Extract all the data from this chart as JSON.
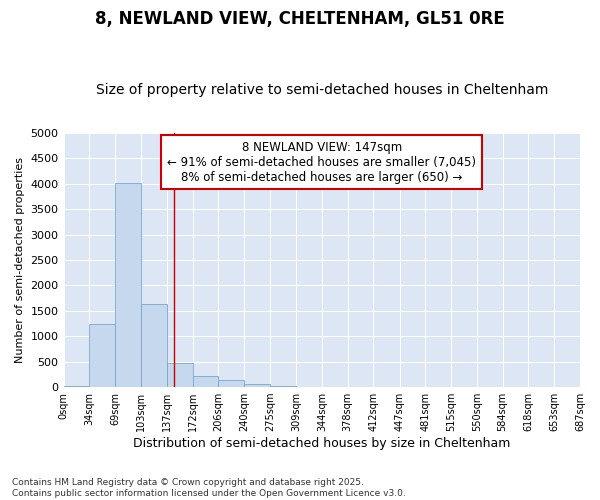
{
  "title1": "8, NEWLAND VIEW, CHELTENHAM, GL51 0RE",
  "title2": "Size of property relative to semi-detached houses in Cheltenham",
  "xlabel": "Distribution of semi-detached houses by size in Cheltenham",
  "ylabel": "Number of semi-detached properties",
  "bar_color": "#c5d8ee",
  "bar_edge_color": "#7ba7cc",
  "bg_color": "#dce6f4",
  "grid_color": "#ffffff",
  "property_line_x": 147,
  "annotation_text": "8 NEWLAND VIEW: 147sqm\n← 91% of semi-detached houses are smaller (7,045)\n8% of semi-detached houses are larger (650) →",
  "annotation_box_color": "#ffffff",
  "annotation_edge_color": "#cc0000",
  "bin_edges": [
    0,
    34,
    69,
    103,
    137,
    172,
    206,
    240,
    275,
    309,
    344,
    378,
    412,
    447,
    481,
    515,
    550,
    584,
    618,
    653,
    687
  ],
  "bin_counts": [
    30,
    1250,
    4020,
    1625,
    480,
    220,
    140,
    60,
    30,
    0,
    0,
    0,
    0,
    0,
    0,
    0,
    0,
    0,
    0,
    0
  ],
  "ylim": [
    0,
    5000
  ],
  "yticks": [
    0,
    500,
    1000,
    1500,
    2000,
    2500,
    3000,
    3500,
    4000,
    4500,
    5000
  ],
  "footnote": "Contains HM Land Registry data © Crown copyright and database right 2025.\nContains public sector information licensed under the Open Government Licence v3.0.",
  "title_fontsize": 12,
  "subtitle_fontsize": 10,
  "annot_fontsize": 8.5
}
